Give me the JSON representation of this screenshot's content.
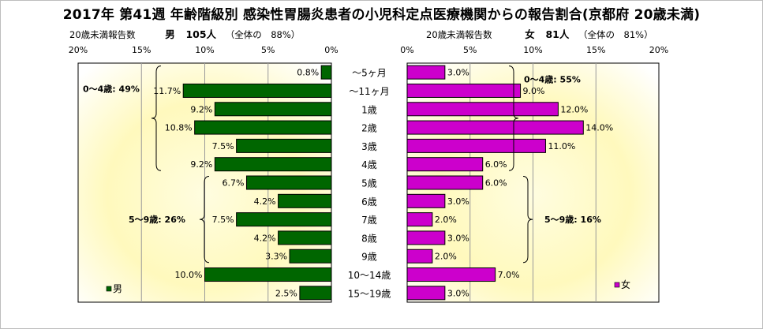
{
  "title": "2017年 第41週 年齢階級別 感染性胃腸炎患者の小児科定点医療機関からの報告割合(京都府 20歳未満)",
  "male_header": {
    "label": "20歳未満報告数",
    "sex": "男",
    "count": "105人",
    "share": "（全体の　88%）"
  },
  "female_header": {
    "label": "20歳未満報告数",
    "sex": "女",
    "count": "81人",
    "share": "（全体の　81%）"
  },
  "chart_data": [
    {
      "type": "bar",
      "orientation": "horizontal",
      "direction": "right-to-left",
      "categories": [
        "～5ヶ月",
        "～11ヶ月",
        "1歳",
        "2歳",
        "3歳",
        "4歳",
        "5歳",
        "6歳",
        "7歳",
        "8歳",
        "9歳",
        "10～14歳",
        "15～19歳"
      ],
      "series": [
        {
          "name": "男",
          "color": "#006600",
          "values": [
            0.8,
            11.7,
            9.2,
            10.8,
            7.5,
            9.2,
            6.7,
            4.2,
            7.5,
            4.2,
            3.3,
            10.0,
            2.5
          ],
          "labels": [
            "0.8%",
            "11.7%",
            "9.2%",
            "10.8%",
            "7.5%",
            "9.2%",
            "6.7%",
            "4.2%",
            "7.5%",
            "4.2%",
            "3.3%",
            "10.0%",
            "2.5%"
          ]
        }
      ],
      "xlim": [
        0,
        20
      ],
      "ticks": [
        "20%",
        "15%",
        "10%",
        "5%",
        "0%"
      ],
      "legend": "bottom-left",
      "annotations": [
        "0～4歳: 49%",
        "5～9歳: 26%"
      ]
    },
    {
      "type": "bar",
      "orientation": "horizontal",
      "direction": "left-to-right",
      "categories": [
        "～5ヶ月",
        "～11ヶ月",
        "1歳",
        "2歳",
        "3歳",
        "4歳",
        "5歳",
        "6歳",
        "7歳",
        "8歳",
        "9歳",
        "10～14歳",
        "15～19歳"
      ],
      "series": [
        {
          "name": "女",
          "color": "#cc00cc",
          "values": [
            3.0,
            9.0,
            12.0,
            14.0,
            11.0,
            6.0,
            6.0,
            3.0,
            2.0,
            3.0,
            2.0,
            7.0,
            3.0
          ],
          "labels": [
            "3.0%",
            "9.0%",
            "12.0%",
            "14.0%",
            "11.0%",
            "6.0%",
            "6.0%",
            "3.0%",
            "2.0%",
            "3.0%",
            "2.0%",
            "7.0%",
            "3.0%"
          ]
        }
      ],
      "xlim": [
        0,
        20
      ],
      "ticks": [
        "0%",
        "5%",
        "10%",
        "15%",
        "20%"
      ],
      "legend": "bottom-right",
      "annotations": [
        "0～4歳: 55%",
        "5～9歳: 16%"
      ]
    }
  ]
}
